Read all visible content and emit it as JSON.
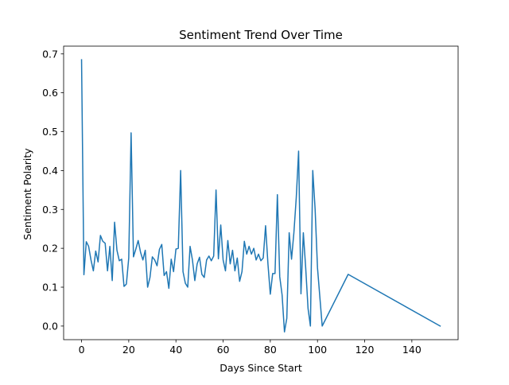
{
  "chart_data": {
    "type": "line",
    "title": "Sentiment Trend Over Time",
    "xlabel": "Days Since Start",
    "ylabel": "Sentiment Polarity",
    "xlim": [
      -7.6,
      159.6
    ],
    "ylim": [
      -0.035,
      0.72
    ],
    "x_ticks": [
      0,
      20,
      40,
      60,
      80,
      100,
      120,
      140
    ],
    "y_ticks": [
      0.0,
      0.1,
      0.2,
      0.3,
      0.4,
      0.5,
      0.6,
      0.7
    ],
    "x_tick_labels": [
      "0",
      "20",
      "40",
      "60",
      "80",
      "100",
      "120",
      "140"
    ],
    "y_tick_labels": [
      "0.0",
      "0.1",
      "0.2",
      "0.3",
      "0.4",
      "0.5",
      "0.6",
      "0.7"
    ],
    "grid": false,
    "line_color": "#1f77b4",
    "series": [
      {
        "name": "",
        "x": [
          0,
          1,
          2,
          3,
          4,
          5,
          6,
          7,
          8,
          9,
          10,
          11,
          12,
          13,
          14,
          15,
          16,
          17,
          18,
          19,
          20,
          21,
          22,
          23,
          24,
          25,
          26,
          27,
          28,
          29,
          30,
          31,
          32,
          33,
          34,
          35,
          36,
          37,
          38,
          39,
          40,
          41,
          42,
          43,
          44,
          45,
          46,
          47,
          48,
          49,
          50,
          51,
          52,
          53,
          54,
          55,
          56,
          57,
          58,
          59,
          60,
          61,
          62,
          63,
          64,
          65,
          66,
          67,
          68,
          69,
          70,
          71,
          72,
          73,
          74,
          75,
          76,
          77,
          78,
          79,
          80,
          81,
          82,
          83,
          84,
          85,
          86,
          87,
          88,
          89,
          90,
          91,
          92,
          93,
          94,
          95,
          96,
          97,
          98,
          99,
          100,
          102,
          113,
          152
        ],
        "y": [
          0.685,
          0.132,
          0.217,
          0.205,
          0.17,
          0.142,
          0.193,
          0.165,
          0.233,
          0.218,
          0.213,
          0.142,
          0.205,
          0.117,
          0.267,
          0.195,
          0.168,
          0.172,
          0.102,
          0.108,
          0.175,
          0.497,
          0.178,
          0.198,
          0.22,
          0.19,
          0.17,
          0.195,
          0.1,
          0.125,
          0.178,
          0.17,
          0.155,
          0.197,
          0.21,
          0.13,
          0.14,
          0.097,
          0.172,
          0.14,
          0.198,
          0.2,
          0.4,
          0.14,
          0.11,
          0.1,
          0.205,
          0.17,
          0.117,
          0.16,
          0.177,
          0.133,
          0.125,
          0.17,
          0.18,
          0.168,
          0.18,
          0.35,
          0.173,
          0.26,
          0.17,
          0.142,
          0.22,
          0.16,
          0.195,
          0.142,
          0.175,
          0.115,
          0.14,
          0.218,
          0.185,
          0.205,
          0.185,
          0.2,
          0.17,
          0.185,
          0.168,
          0.175,
          0.258,
          0.16,
          0.082,
          0.135,
          0.135,
          0.338,
          0.127,
          0.08,
          -0.015,
          0.02,
          0.24,
          0.172,
          0.24,
          0.33,
          0.45,
          0.083,
          0.24,
          0.15,
          0.045,
          0.0,
          0.4,
          0.3,
          0.15,
          0.0,
          0.133,
          0.0
        ]
      }
    ]
  }
}
